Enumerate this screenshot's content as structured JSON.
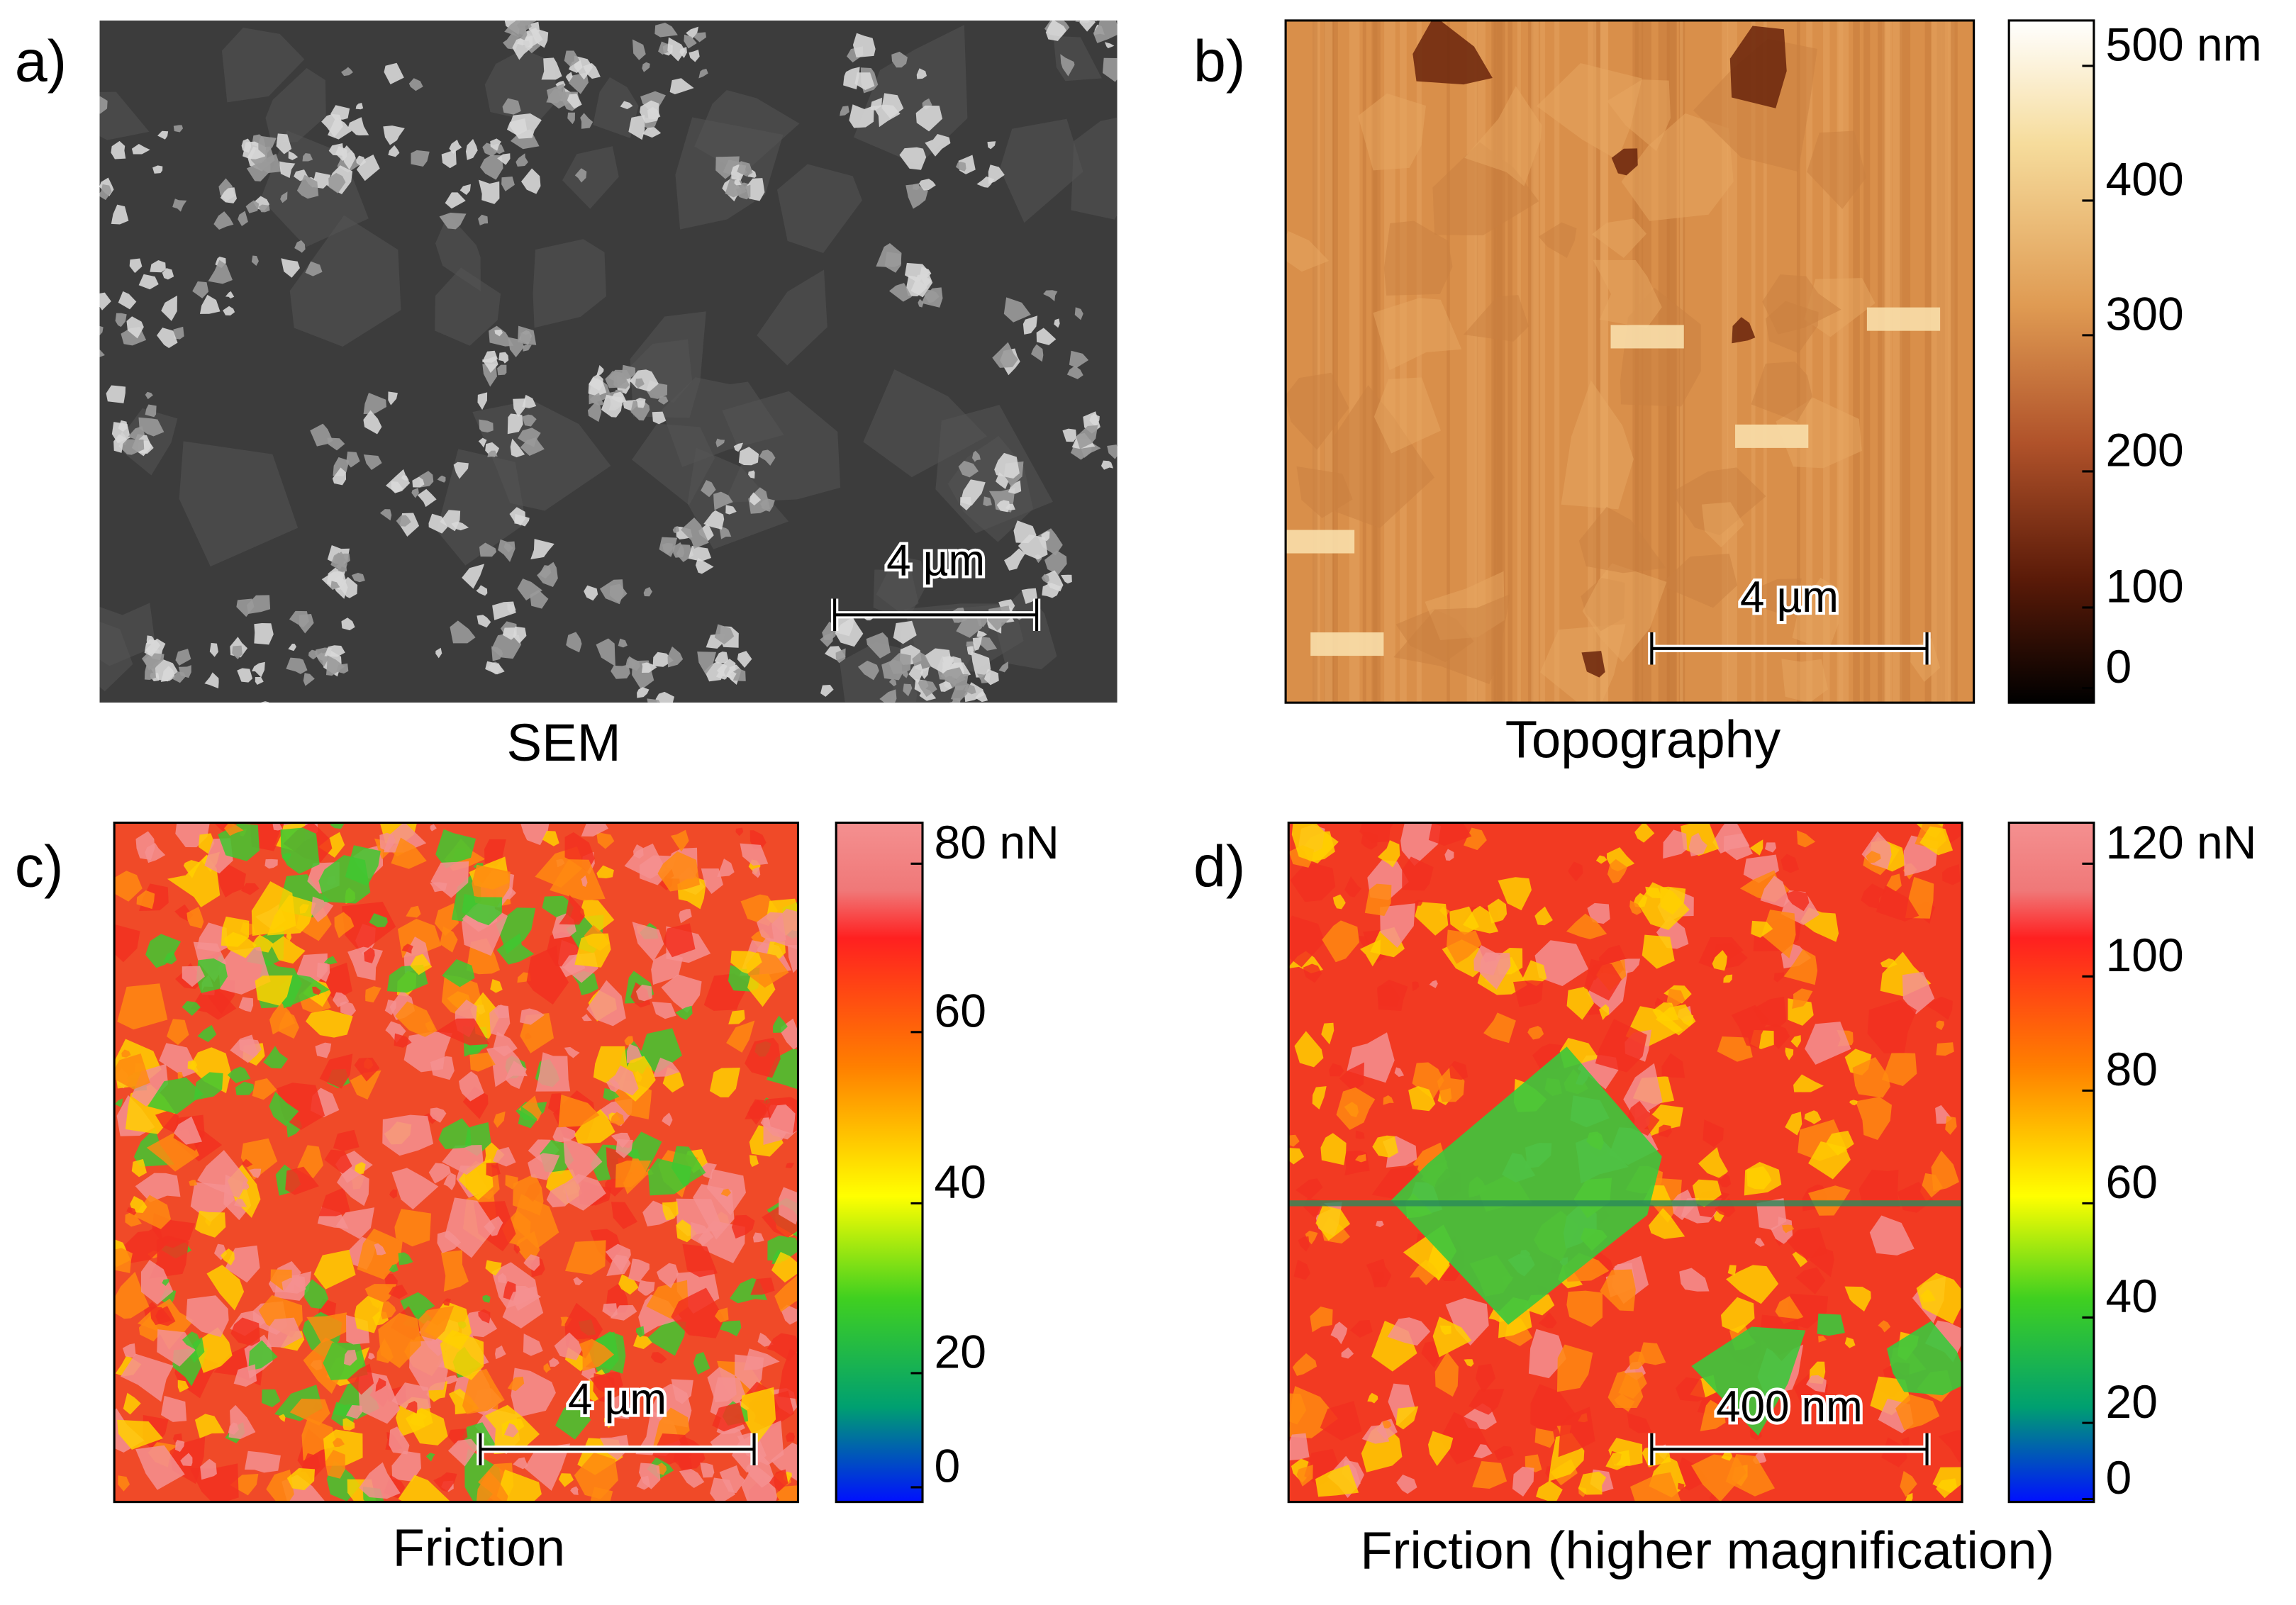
{
  "panels": [
    {
      "label": "a)",
      "caption": "SEM",
      "scale_bar": "4 µm"
    },
    {
      "label": "b)",
      "caption": "Topography",
      "scale_bar": "4 µm",
      "colorbar": {
        "ticks": [
          "500 nm",
          "400",
          "300",
          "200",
          "100",
          "0"
        ]
      }
    },
    {
      "label": "c)",
      "caption": "Friction",
      "scale_bar": "4 µm",
      "colorbar": {
        "ticks": [
          "80 nN",
          "60",
          "40",
          "20",
          "0"
        ]
      }
    },
    {
      "label": "d)",
      "caption": "Friction (higher magnification)",
      "scale_bar": "400 nm",
      "colorbar": {
        "ticks": [
          "120 nN",
          "100",
          "80",
          "60",
          "40",
          "20",
          "0"
        ]
      }
    }
  ]
}
